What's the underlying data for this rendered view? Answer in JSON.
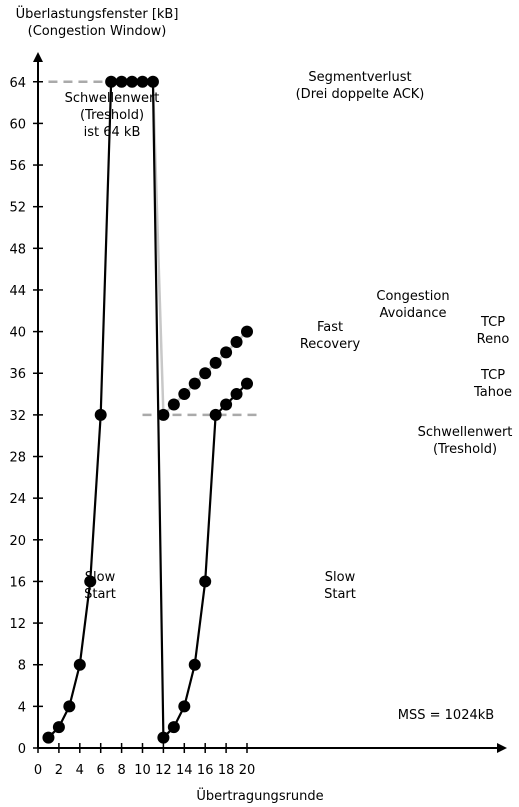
{
  "chart_data": {
    "type": "line",
    "ylabel": [
      "Überlastungsfenster [kB]",
      "(Congestion Window)"
    ],
    "xlabel": "Übertragungsrunde",
    "xlim": [
      0,
      22
    ],
    "ylim": [
      0,
      68
    ],
    "x_ticks": [
      0,
      2,
      4,
      6,
      8,
      10,
      12,
      14,
      16,
      18,
      20
    ],
    "y_ticks": [
      0,
      4,
      8,
      12,
      16,
      20,
      24,
      28,
      32,
      36,
      40,
      44,
      48,
      52,
      56,
      60,
      64
    ],
    "series": [
      {
        "name": "",
        "color": "#000000",
        "x": [
          1,
          2,
          3,
          4,
          5,
          6,
          7,
          8,
          9,
          10,
          11,
          12,
          13,
          14,
          15,
          16,
          17,
          18,
          19,
          20
        ],
        "y": [
          1,
          2,
          4,
          8,
          16,
          32,
          64,
          64,
          64,
          64,
          64,
          1,
          2,
          4,
          8,
          16,
          32,
          33,
          34,
          35
        ]
      },
      {
        "name": "",
        "color": "#c8c8c8",
        "x": [
          11,
          12,
          13,
          14,
          15,
          16,
          17,
          18,
          19,
          20
        ],
        "y": [
          64,
          32,
          33,
          34,
          35,
          36,
          37,
          38,
          39,
          40
        ]
      }
    ],
    "threshold_lines": [
      {
        "y": 64,
        "x": [
          1,
          7
        ],
        "color": "#aaaaaa"
      },
      {
        "y": 32,
        "x": [
          10,
          21
        ],
        "color": "#aaaaaa"
      }
    ],
    "annotations": {
      "schwellenwert_64": [
        "Schwellenwert",
        "(Treshold)",
        "ist 64 kB"
      ],
      "segmentverlust": [
        "Segmentverlust",
        "(Drei doppelte ACK)"
      ],
      "fast_recovery": [
        "Fast",
        "Recovery"
      ],
      "congestion_avoidance": [
        "Congestion",
        "Avoidance"
      ],
      "tcp_reno": [
        "TCP",
        "Reno"
      ],
      "tcp_tahoe": [
        "TCP",
        "Tahoe"
      ],
      "schwellenwert_32": [
        "Schwellenwert",
        "(Treshold)"
      ],
      "slow_start_1": [
        "Slow",
        "Start"
      ],
      "slow_start_2": [
        "Slow",
        "Start"
      ],
      "mss": "MSS = 1024kB"
    }
  }
}
